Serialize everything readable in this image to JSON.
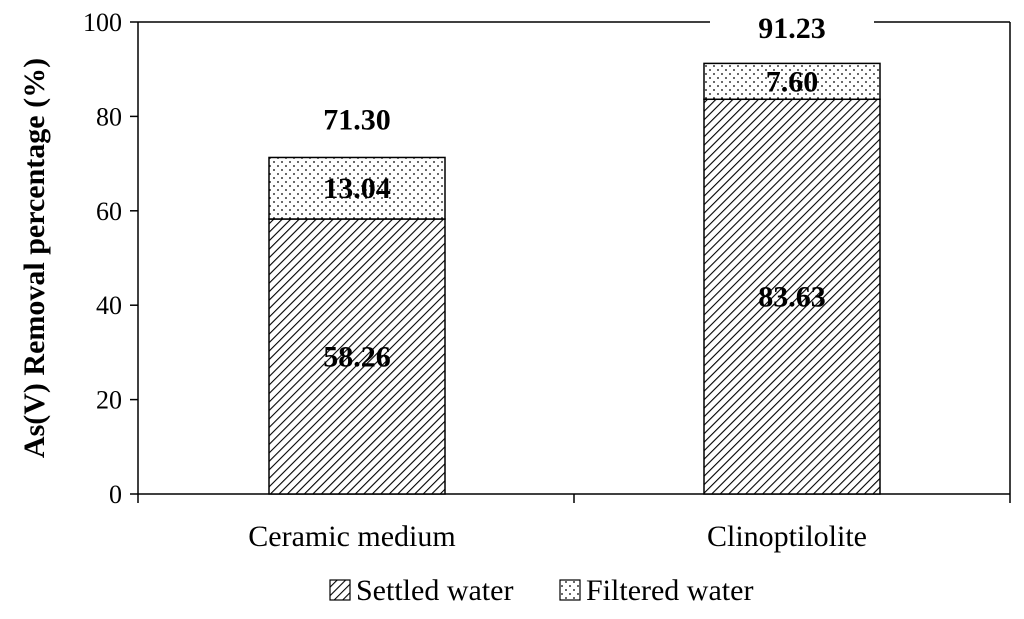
{
  "chart_data": {
    "type": "bar",
    "stacked": true,
    "categories": [
      "Ceramic medium",
      "Clinoptilolite"
    ],
    "series": [
      {
        "name": "Settled water",
        "values": [
          58.26,
          83.63
        ],
        "pattern": "diagonal-hatch",
        "labels": [
          "58.26",
          "83.63"
        ]
      },
      {
        "name": "Filtered water",
        "values": [
          13.04,
          7.6
        ],
        "pattern": "dots",
        "labels": [
          "13.04",
          "7.60"
        ]
      }
    ],
    "totals": [
      71.3,
      91.23
    ],
    "total_labels": [
      "71.30",
      "91.23"
    ],
    "ylabel": "As(V) Removal percentage (%)",
    "xlabel": "",
    "ylim": [
      0,
      100
    ],
    "yticks": [
      0,
      20,
      40,
      60,
      80,
      100
    ],
    "grid": false,
    "legend": "bottom"
  }
}
